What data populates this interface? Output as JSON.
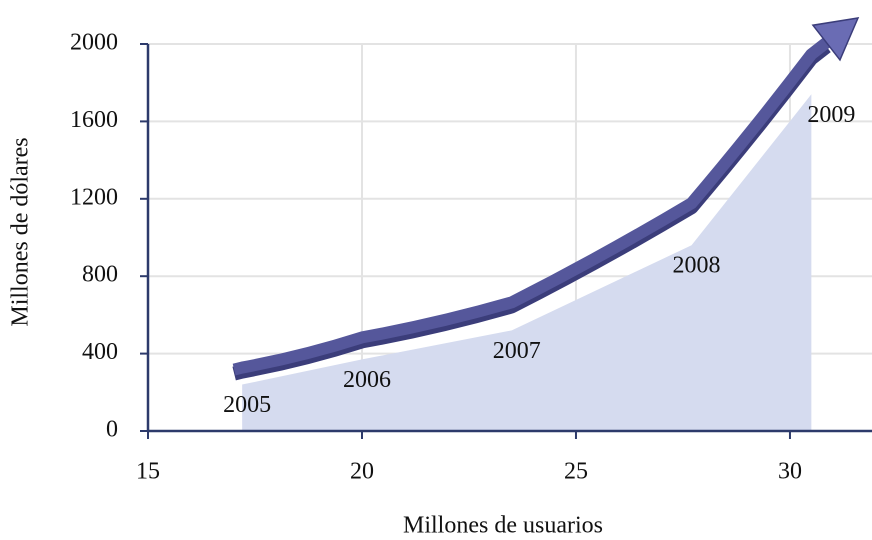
{
  "chart_data": {
    "type": "area",
    "x_label": "Millones de usuarios",
    "y_label": "Millones de dólares",
    "x": [
      17.2,
      20,
      23.5,
      27.7,
      30.5
    ],
    "values": [
      240,
      370,
      520,
      960,
      1740
    ],
    "point_labels": [
      "2005",
      "2006",
      "2007",
      "2008",
      "2009"
    ],
    "color": "#d5dbef",
    "arrow_color": "#55579b",
    "xlim": [
      15,
      31.8
    ],
    "xticks": [
      15,
      20,
      25,
      30
    ],
    "ylim": [
      0,
      2000
    ],
    "yticks": [
      0,
      400,
      800,
      1200,
      1600,
      2000
    ],
    "grid": true
  }
}
